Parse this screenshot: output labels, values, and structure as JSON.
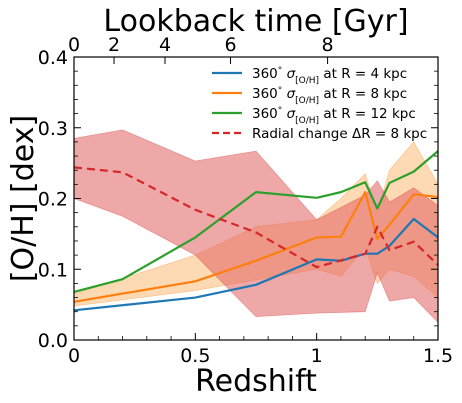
{
  "chart_data": {
    "type": "line",
    "xlabel": "Redshift",
    "ylabel": "[O/H] [dex]",
    "top_xlabel": "Lookback time [Gyr]",
    "xlim": [
      0,
      1.5
    ],
    "ylim": [
      0,
      0.4
    ],
    "x_ticks": [
      {
        "v": 0,
        "label": "0"
      },
      {
        "v": 0.5,
        "label": "0.5"
      },
      {
        "v": 1,
        "label": "1"
      },
      {
        "v": 1.5,
        "label": "1.5"
      }
    ],
    "y_ticks": [
      {
        "v": 0,
        "label": "0.0"
      },
      {
        "v": 0.1,
        "label": "0.1"
      },
      {
        "v": 0.2,
        "label": "0.2"
      },
      {
        "v": 0.3,
        "label": "0.3"
      },
      {
        "v": 0.4,
        "label": "0.4"
      }
    ],
    "top_ticks": [
      {
        "z": 0,
        "label": "0"
      },
      {
        "z": 0.165,
        "label": "2"
      },
      {
        "z": 0.375,
        "label": "4"
      },
      {
        "z": 0.645,
        "label": "6"
      },
      {
        "z": 1.045,
        "label": "8"
      }
    ],
    "legend": {
      "position": "upper right"
    },
    "grid": false,
    "series": [
      {
        "name": "360° σ_[O/H] at R = 4 kpc",
        "legend_parts": [
          "360",
          "°",
          " σ",
          "[O/H]",
          " at R = 4 kpc"
        ],
        "color": "#1f77b4",
        "style": "solid",
        "x": [
          0,
          0.5,
          0.75,
          1.0,
          1.1,
          1.2,
          1.25,
          1.3,
          1.4,
          1.5
        ],
        "y": [
          0.042,
          0.06,
          0.078,
          0.114,
          0.112,
          0.122,
          0.122,
          0.133,
          0.171,
          0.145
        ]
      },
      {
        "name": "360° σ_[O/H] at R = 8 kpc",
        "legend_parts": [
          "360",
          "°",
          " σ",
          "[O/H]",
          " at R = 8 kpc"
        ],
        "color": "#ff7f0e",
        "style": "solid",
        "x": [
          0,
          0.5,
          0.75,
          1.0,
          1.1,
          1.2,
          1.25,
          1.3,
          1.4,
          1.5
        ],
        "y": [
          0.054,
          0.083,
          0.112,
          0.145,
          0.146,
          0.209,
          0.143,
          0.163,
          0.206,
          0.202
        ],
        "band_lower": [
          0.048,
          0.07,
          0.085,
          0.1,
          0.09,
          0.13,
          0.08,
          0.1,
          0.09,
          0.06
        ],
        "band_upper": [
          0.065,
          0.12,
          0.16,
          0.17,
          0.2,
          0.235,
          0.18,
          0.24,
          0.28,
          0.22
        ]
      },
      {
        "name": "360° σ_[O/H] at R = 12 kpc",
        "legend_parts": [
          "360",
          "°",
          " σ",
          "[O/H]",
          " at R = 12 kpc"
        ],
        "color": "#2ca02c",
        "style": "solid",
        "x": [
          0,
          0.2,
          0.5,
          0.75,
          1.0,
          1.1,
          1.2,
          1.25,
          1.3,
          1.4,
          1.5
        ],
        "y": [
          0.068,
          0.086,
          0.145,
          0.209,
          0.201,
          0.209,
          0.223,
          0.186,
          0.222,
          0.238,
          0.267
        ]
      },
      {
        "name": "Radial change ΔR = 8 kpc",
        "legend_parts": [
          "Radial change ΔR = 8 kpc"
        ],
        "color": "#d62728",
        "style": "dashed",
        "x": [
          0,
          0.2,
          0.5,
          0.75,
          1.0,
          1.2,
          1.25,
          1.3,
          1.4,
          1.5
        ],
        "y": [
          0.244,
          0.237,
          0.184,
          0.152,
          0.103,
          0.122,
          0.16,
          0.127,
          0.139,
          0.106
        ],
        "band_lower": [
          0.2,
          0.175,
          0.12,
          0.033,
          0.038,
          0.04,
          0.095,
          0.055,
          0.06,
          0.025
        ],
        "band_upper": [
          0.285,
          0.297,
          0.253,
          0.267,
          0.17,
          0.205,
          0.225,
          0.195,
          0.215,
          0.19
        ]
      }
    ]
  }
}
